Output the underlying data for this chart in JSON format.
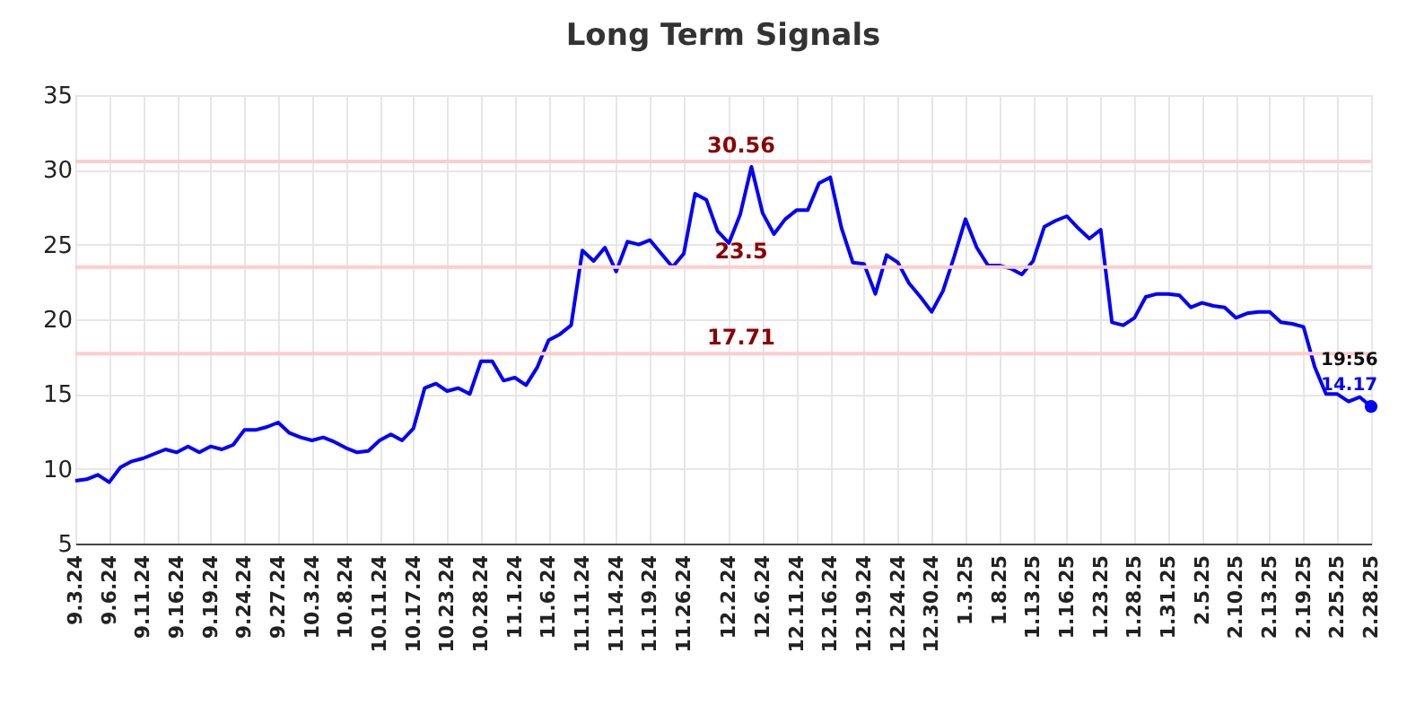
{
  "chart_data": {
    "type": "line",
    "title": "Long Term Signals",
    "categories": [
      "9.3.24",
      null,
      null,
      "9.6.24",
      null,
      null,
      "9.11.24",
      null,
      null,
      "9.16.24",
      null,
      null,
      "9.19.24",
      null,
      null,
      "9.24.24",
      null,
      null,
      "9.27.24",
      null,
      null,
      "10.3.24",
      null,
      null,
      "10.8.24",
      null,
      null,
      "10.11.24",
      null,
      null,
      "10.17.24",
      null,
      null,
      "10.23.24",
      null,
      null,
      "10.28.24",
      null,
      null,
      "11.1.24",
      null,
      null,
      "11.6.24",
      null,
      null,
      "11.11.24",
      null,
      null,
      "11.14.24",
      null,
      null,
      "11.19.24",
      null,
      null,
      "11.26.24",
      null,
      null,
      null,
      "12.2.24",
      null,
      null,
      "12.6.24",
      null,
      null,
      "12.11.24",
      null,
      null,
      "12.16.24",
      null,
      null,
      "12.19.24",
      null,
      null,
      "12.24.24",
      null,
      null,
      "12.30.24",
      null,
      null,
      "1.3.25",
      null,
      null,
      "1.8.25",
      null,
      null,
      "1.13.25",
      null,
      null,
      "1.16.25",
      null,
      null,
      "1.23.25",
      null,
      null,
      "1.28.25",
      null,
      null,
      "1.31.25",
      null,
      null,
      "2.5.25",
      null,
      null,
      "2.10.25",
      null,
      null,
      "2.13.25",
      null,
      null,
      "2.19.25",
      null,
      null,
      "2.25.25",
      null,
      null,
      "2.28.25"
    ],
    "series": [
      {
        "color": "#0000ff",
        "values": [
          9.2,
          9.3,
          9.6,
          9.1,
          10.1,
          10.5,
          10.7,
          11.0,
          11.3,
          11.1,
          11.5,
          11.1,
          11.5,
          11.3,
          11.6,
          12.6,
          12.6,
          12.8,
          13.1,
          12.4,
          12.1,
          11.9,
          12.1,
          11.8,
          11.4,
          11.1,
          11.2,
          11.9,
          12.3,
          11.9,
          12.7,
          15.4,
          15.7,
          15.2,
          15.4,
          15.0,
          17.2,
          17.2,
          15.9,
          16.1,
          15.6,
          16.8,
          18.6,
          19.0,
          19.6,
          24.6,
          23.9,
          24.8,
          23.2,
          25.2,
          25.0,
          25.3,
          24.4,
          23.5,
          24.4,
          28.4,
          28.0,
          25.9,
          25.1,
          27.0,
          30.2,
          27.1,
          25.7,
          26.7,
          27.3,
          27.3,
          29.1,
          29.5,
          26.1,
          23.8,
          23.7,
          21.7,
          24.3,
          23.8,
          22.4,
          21.5,
          20.5,
          21.9,
          24.2,
          26.7,
          24.8,
          23.6,
          23.6,
          23.4,
          23.0,
          23.9,
          26.2,
          26.6,
          26.9,
          26.1,
          25.4,
          26.0,
          19.8,
          19.6,
          20.1,
          21.5,
          21.7,
          21.7,
          21.6,
          20.8,
          21.1,
          20.9,
          20.8,
          20.1,
          20.4,
          20.5,
          20.5,
          19.8,
          19.7,
          19.5,
          16.8,
          15.0,
          15.0,
          14.5,
          14.8,
          14.17
        ],
        "value_labels": [
          null,
          null,
          null,
          null,
          null,
          null,
          null,
          null,
          null,
          null,
          null,
          null,
          null,
          null,
          null,
          null,
          null,
          null,
          null,
          null,
          null,
          null,
          null,
          null,
          null,
          null,
          null,
          null,
          null,
          null,
          null,
          null,
          null,
          null,
          null,
          null,
          null,
          null,
          null,
          null,
          null,
          null,
          null,
          null,
          null,
          null,
          null,
          null,
          null,
          null,
          null,
          null,
          null,
          null,
          null,
          null,
          null,
          null,
          null,
          null,
          null,
          null,
          null,
          null,
          null,
          null,
          null,
          null,
          null,
          null,
          null,
          null,
          null,
          null,
          null,
          null,
          null,
          null,
          null,
          null,
          null,
          null,
          null,
          null,
          null,
          null,
          null,
          null,
          null,
          null,
          null,
          null,
          null,
          null,
          null,
          null,
          null,
          null,
          null,
          null,
          null,
          null,
          null,
          null,
          null,
          null,
          null,
          null,
          null,
          null,
          null,
          null,
          null,
          null,
          null,
          "14.17"
        ]
      }
    ],
    "ylim": [
      5,
      35
    ],
    "yticks": [
      5,
      10,
      15,
      20,
      25,
      30,
      35
    ],
    "grid": true,
    "marker": "none",
    "line_style": "solid",
    "ref_lines": [
      {
        "axis": "y",
        "value": 30.56,
        "label": "30.56",
        "color": "#ffcccc"
      },
      {
        "axis": "y",
        "value": 23.5,
        "label": "23.5",
        "color": "#ffcccc"
      },
      {
        "axis": "y",
        "value": 17.71,
        "label": "17.71",
        "color": "#ffcccc"
      }
    ],
    "annotations": [
      {
        "text": "19:56",
        "x": "2.28.25",
        "y": 14.17
      }
    ]
  }
}
